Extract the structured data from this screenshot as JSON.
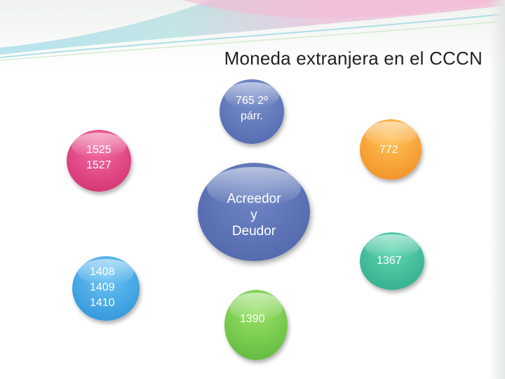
{
  "title": "Moneda extranjera en el CCCN",
  "nodes": {
    "top": "765 2º\npárr.",
    "center": "Acreedor\ny\nDeudor",
    "top_left": "1525\n1527",
    "top_right": "772",
    "right": "1367",
    "bottom_left": "1408\n1409\n1410",
    "bottom": "1390"
  },
  "colors": {
    "blue": "#5a70b5",
    "pink": "#e0417f",
    "orange": "#f7a233",
    "teal": "#3fbf99",
    "light_blue": "#3fa4e3",
    "green": "#73c84b"
  }
}
